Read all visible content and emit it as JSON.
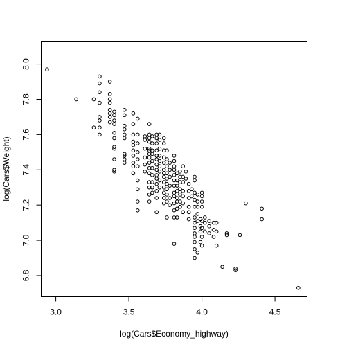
{
  "chart_data": {
    "type": "scatter",
    "title": "",
    "xlabel": "log(Cars$Economy_highway)",
    "ylabel": "log(Cars$Weight)",
    "xlim": [
      2.9,
      4.72
    ],
    "ylim": [
      6.68,
      8.13
    ],
    "x_ticks": [
      "3.0",
      "3.5",
      "4.0",
      "4.5"
    ],
    "y_ticks": [
      "6.8",
      "7.0",
      "7.2",
      "7.4",
      "7.6",
      "7.8",
      "8.0"
    ],
    "grid": false,
    "legend": "none",
    "marker": "open-circle",
    "color": "#000000",
    "points": [
      [
        2.94,
        7.97
      ],
      [
        3.14,
        7.8
      ],
      [
        3.26,
        7.8
      ],
      [
        3.26,
        7.64
      ],
      [
        3.3,
        7.93
      ],
      [
        3.3,
        7.89
      ],
      [
        3.3,
        7.84
      ],
      [
        3.3,
        7.78
      ],
      [
        3.3,
        7.7
      ],
      [
        3.3,
        7.68
      ],
      [
        3.3,
        7.64
      ],
      [
        3.3,
        7.6
      ],
      [
        3.37,
        7.9
      ],
      [
        3.37,
        7.83
      ],
      [
        3.37,
        7.8
      ],
      [
        3.37,
        7.78
      ],
      [
        3.37,
        7.74
      ],
      [
        3.37,
        7.72
      ],
      [
        3.37,
        7.7
      ],
      [
        3.37,
        7.67
      ],
      [
        3.4,
        7.73
      ],
      [
        3.4,
        7.71
      ],
      [
        3.4,
        7.68
      ],
      [
        3.4,
        7.66
      ],
      [
        3.4,
        7.61
      ],
      [
        3.4,
        7.58
      ],
      [
        3.4,
        7.53
      ],
      [
        3.4,
        7.52
      ],
      [
        3.4,
        7.46
      ],
      [
        3.4,
        7.4
      ],
      [
        3.4,
        7.39
      ],
      [
        3.47,
        7.74
      ],
      [
        3.47,
        7.71
      ],
      [
        3.47,
        7.65
      ],
      [
        3.47,
        7.63
      ],
      [
        3.47,
        7.6
      ],
      [
        3.47,
        7.58
      ],
      [
        3.47,
        7.49
      ],
      [
        3.47,
        7.48
      ],
      [
        3.47,
        7.46
      ],
      [
        3.47,
        7.44
      ],
      [
        3.53,
        7.72
      ],
      [
        3.53,
        7.66
      ],
      [
        3.53,
        7.6
      ],
      [
        3.53,
        7.56
      ],
      [
        3.53,
        7.54
      ],
      [
        3.53,
        7.51
      ],
      [
        3.53,
        7.48
      ],
      [
        3.53,
        7.44
      ],
      [
        3.53,
        7.42
      ],
      [
        3.53,
        7.38
      ],
      [
        3.56,
        7.69
      ],
      [
        3.56,
        7.6
      ],
      [
        3.56,
        7.55
      ],
      [
        3.56,
        7.5
      ],
      [
        3.56,
        7.46
      ],
      [
        3.56,
        7.42
      ],
      [
        3.56,
        7.34
      ],
      [
        3.56,
        7.29
      ],
      [
        3.56,
        7.22
      ],
      [
        3.56,
        7.17
      ],
      [
        3.61,
        7.59
      ],
      [
        3.61,
        7.57
      ],
      [
        3.61,
        7.52
      ],
      [
        3.61,
        7.47
      ],
      [
        3.61,
        7.43
      ],
      [
        3.61,
        7.39
      ],
      [
        3.64,
        7.66
      ],
      [
        3.64,
        7.6
      ],
      [
        3.64,
        7.58
      ],
      [
        3.64,
        7.56
      ],
      [
        3.64,
        7.52
      ],
      [
        3.64,
        7.51
      ],
      [
        3.64,
        7.49
      ],
      [
        3.64,
        7.47
      ],
      [
        3.64,
        7.44
      ],
      [
        3.64,
        7.41
      ],
      [
        3.64,
        7.38
      ],
      [
        3.64,
        7.33
      ],
      [
        3.64,
        7.3
      ],
      [
        3.64,
        7.26
      ],
      [
        3.64,
        7.22
      ],
      [
        3.66,
        7.59
      ],
      [
        3.66,
        7.55
      ],
      [
        3.66,
        7.51
      ],
      [
        3.66,
        7.49
      ],
      [
        3.66,
        7.45
      ],
      [
        3.66,
        7.41
      ],
      [
        3.66,
        7.37
      ],
      [
        3.66,
        7.33
      ],
      [
        3.66,
        7.3
      ],
      [
        3.66,
        7.27
      ],
      [
        3.69,
        7.6
      ],
      [
        3.69,
        7.58
      ],
      [
        3.69,
        7.55
      ],
      [
        3.69,
        7.51
      ],
      [
        3.69,
        7.48
      ],
      [
        3.69,
        7.46
      ],
      [
        3.69,
        7.43
      ],
      [
        3.69,
        7.4
      ],
      [
        3.69,
        7.37
      ],
      [
        3.69,
        7.35
      ],
      [
        3.69,
        7.32
      ],
      [
        3.69,
        7.28
      ],
      [
        3.69,
        7.24
      ],
      [
        3.69,
        7.16
      ],
      [
        3.71,
        7.6
      ],
      [
        3.71,
        7.57
      ],
      [
        3.71,
        7.52
      ],
      [
        3.71,
        7.48
      ],
      [
        3.71,
        7.45
      ],
      [
        3.71,
        7.42
      ],
      [
        3.71,
        7.39
      ],
      [
        3.71,
        7.34
      ],
      [
        3.71,
        7.3
      ],
      [
        3.74,
        7.58
      ],
      [
        3.74,
        7.55
      ],
      [
        3.74,
        7.51
      ],
      [
        3.74,
        7.47
      ],
      [
        3.74,
        7.44
      ],
      [
        3.74,
        7.4
      ],
      [
        3.74,
        7.38
      ],
      [
        3.74,
        7.36
      ],
      [
        3.74,
        7.33
      ],
      [
        3.74,
        7.3
      ],
      [
        3.74,
        7.27
      ],
      [
        3.74,
        7.24
      ],
      [
        3.74,
        7.21
      ],
      [
        3.76,
        7.51
      ],
      [
        3.76,
        7.46
      ],
      [
        3.76,
        7.42
      ],
      [
        3.76,
        7.38
      ],
      [
        3.76,
        7.35
      ],
      [
        3.76,
        7.32
      ],
      [
        3.76,
        7.29
      ],
      [
        3.76,
        7.26
      ],
      [
        3.76,
        7.22
      ],
      [
        3.76,
        7.13
      ],
      [
        3.78,
        7.44
      ],
      [
        3.78,
        7.4
      ],
      [
        3.78,
        7.36
      ],
      [
        3.78,
        7.31
      ],
      [
        3.78,
        7.24
      ],
      [
        3.78,
        7.2
      ],
      [
        3.81,
        7.48
      ],
      [
        3.81,
        7.45
      ],
      [
        3.81,
        7.42
      ],
      [
        3.81,
        7.4
      ],
      [
        3.81,
        7.37
      ],
      [
        3.81,
        7.34
      ],
      [
        3.81,
        7.31
      ],
      [
        3.81,
        7.27
      ],
      [
        3.81,
        7.25
      ],
      [
        3.81,
        7.21
      ],
      [
        3.81,
        7.17
      ],
      [
        3.81,
        7.13
      ],
      [
        3.81,
        6.98
      ],
      [
        3.83,
        7.38
      ],
      [
        3.83,
        7.34
      ],
      [
        3.83,
        7.31
      ],
      [
        3.83,
        7.28
      ],
      [
        3.83,
        7.24
      ],
      [
        3.83,
        7.22
      ],
      [
        3.83,
        7.18
      ],
      [
        3.83,
        7.13
      ],
      [
        3.85,
        7.39
      ],
      [
        3.85,
        7.36
      ],
      [
        3.85,
        7.33
      ],
      [
        3.85,
        7.29
      ],
      [
        3.85,
        7.26
      ],
      [
        3.85,
        7.22
      ],
      [
        3.85,
        7.19
      ],
      [
        3.87,
        7.42
      ],
      [
        3.87,
        7.36
      ],
      [
        3.87,
        7.33
      ],
      [
        3.87,
        7.28
      ],
      [
        3.87,
        7.25
      ],
      [
        3.87,
        7.21
      ],
      [
        3.87,
        7.16
      ],
      [
        3.89,
        7.39
      ],
      [
        3.89,
        7.35
      ],
      [
        3.91,
        7.32
      ],
      [
        3.91,
        7.28
      ],
      [
        3.91,
        7.24
      ],
      [
        3.91,
        7.19
      ],
      [
        3.91,
        7.16
      ],
      [
        3.91,
        7.12
      ],
      [
        3.93,
        7.29
      ],
      [
        3.93,
        7.25
      ],
      [
        3.95,
        7.36
      ],
      [
        3.95,
        7.34
      ],
      [
        3.95,
        7.27
      ],
      [
        3.95,
        7.23
      ],
      [
        3.95,
        7.19
      ],
      [
        3.95,
        7.13
      ],
      [
        3.95,
        7.1
      ],
      [
        3.95,
        7.07
      ],
      [
        3.95,
        7.04
      ],
      [
        3.95,
        7.02
      ],
      [
        3.95,
        6.99
      ],
      [
        3.95,
        6.95
      ],
      [
        3.95,
        6.9
      ],
      [
        3.97,
        7.26
      ],
      [
        3.97,
        7.22
      ],
      [
        3.97,
        7.19
      ],
      [
        3.97,
        7.15
      ],
      [
        3.97,
        7.11
      ],
      [
        3.97,
        6.93
      ],
      [
        3.99,
        7.12
      ],
      [
        3.99,
        7.08
      ],
      [
        3.99,
        7.05
      ],
      [
        3.99,
        6.99
      ],
      [
        4.0,
        7.27
      ],
      [
        4.0,
        7.25
      ],
      [
        4.0,
        7.22
      ],
      [
        4.0,
        7.19
      ],
      [
        4.0,
        7.11
      ],
      [
        4.0,
        7.07
      ],
      [
        4.0,
        7.02
      ],
      [
        4.0,
        6.97
      ],
      [
        4.02,
        7.13
      ],
      [
        4.02,
        7.1
      ],
      [
        4.02,
        7.05
      ],
      [
        4.05,
        7.11
      ],
      [
        4.05,
        7.08
      ],
      [
        4.05,
        7.04
      ],
      [
        4.08,
        7.1
      ],
      [
        4.08,
        7.06
      ],
      [
        4.08,
        7.02
      ],
      [
        4.1,
        7.1
      ],
      [
        4.1,
        7.05
      ],
      [
        4.1,
        6.97
      ],
      [
        4.14,
        6.85
      ],
      [
        4.17,
        7.04
      ],
      [
        4.17,
        7.03
      ],
      [
        4.23,
        6.84
      ],
      [
        4.23,
        6.83
      ],
      [
        4.26,
        7.03
      ],
      [
        4.3,
        7.21
      ],
      [
        4.41,
        7.18
      ],
      [
        4.41,
        7.12
      ],
      [
        4.66,
        6.73
      ]
    ]
  }
}
